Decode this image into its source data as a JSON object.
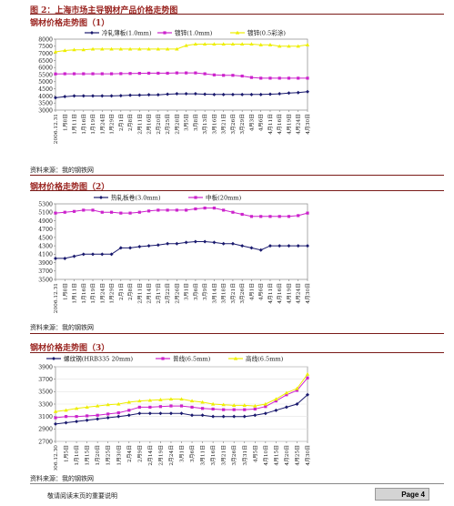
{
  "figure_title": "图 2：上海市场主导钢材产品价格走势图",
  "source_text": "资料来源：我的钢铁网",
  "disclaimer": "敬请阅读末页的重要说明",
  "page_label": "Page 4",
  "chart_data": [
    {
      "type": "line",
      "title": "钢材价格走势图（1）",
      "ylim": [
        3000,
        8000
      ],
      "yticks": [
        3000,
        3500,
        4000,
        4500,
        5000,
        5500,
        6000,
        6500,
        7000,
        7500,
        8000
      ],
      "x": [
        "2006.12.31",
        "1月8日",
        "1月11日",
        "1月16日",
        "1月19日",
        "1月24日",
        "1月29日",
        "2月1日",
        "2月8日",
        "2月11日",
        "2月16日",
        "2月20日",
        "2月25日",
        "2月28日",
        "3月5日",
        "3月8日",
        "3月13日",
        "3月16日",
        "3月21日",
        "3月26日",
        "3月29日",
        "4月3日",
        "4月6日",
        "4月11日",
        "4月16日",
        "4月19日",
        "4月24日",
        "4月30日"
      ],
      "series": [
        {
          "name": "冷轧薄板(1.0mm)",
          "color": "#1a1a6e",
          "marker": "diamond",
          "values": [
            3870,
            3950,
            4000,
            4000,
            4000,
            4000,
            4000,
            4020,
            4050,
            4060,
            4080,
            4080,
            4120,
            4150,
            4150,
            4150,
            4120,
            4100,
            4100,
            4100,
            4100,
            4100,
            4100,
            4120,
            4150,
            4200,
            4230,
            4300
          ]
        },
        {
          "name": "镀锌(1.0mm)",
          "color": "#cc22cc",
          "marker": "square",
          "values": [
            5550,
            5560,
            5560,
            5560,
            5560,
            5560,
            5560,
            5570,
            5580,
            5590,
            5600,
            5600,
            5600,
            5620,
            5620,
            5620,
            5560,
            5480,
            5450,
            5450,
            5400,
            5300,
            5250,
            5250,
            5250,
            5250,
            5250,
            5250
          ]
        },
        {
          "name": "镀锌(0.5彩涂)",
          "color": "#eeee00",
          "marker": "triangle",
          "values": [
            7100,
            7200,
            7250,
            7250,
            7300,
            7300,
            7300,
            7300,
            7300,
            7300,
            7300,
            7300,
            7300,
            7300,
            7550,
            7650,
            7650,
            7650,
            7650,
            7650,
            7650,
            7650,
            7600,
            7600,
            7500,
            7500,
            7500,
            7600
          ]
        }
      ]
    },
    {
      "type": "line",
      "title": "钢材价格走势图（2）",
      "ylim": [
        3500,
        5300
      ],
      "yticks": [
        3500,
        3700,
        3900,
        4100,
        4300,
        4500,
        4700,
        4900,
        5100,
        5300
      ],
      "x": [
        "2006.12.31",
        "1月8日",
        "1月11日",
        "1月16日",
        "1月19日",
        "1月24日",
        "1月29日",
        "2月1日",
        "2月8日",
        "2月11日",
        "2月14日",
        "2月17日",
        "2月22日",
        "2月26日",
        "3月1日",
        "3月6日",
        "3月9日",
        "3月14日",
        "3月18日",
        "3月21日",
        "3月26日",
        "4月1日",
        "4月6日",
        "4月11日",
        "4月16日",
        "4月19日",
        "4月24日",
        "4月30日"
      ],
      "series": [
        {
          "name": "热轧板卷(3.0mm)",
          "color": "#1a1a6e",
          "marker": "diamond",
          "values": [
            4000,
            4000,
            4050,
            4100,
            4100,
            4100,
            4100,
            4250,
            4250,
            4280,
            4300,
            4320,
            4350,
            4350,
            4380,
            4400,
            4400,
            4380,
            4350,
            4350,
            4300,
            4250,
            4200,
            4300,
            4300,
            4300,
            4300,
            4300
          ]
        },
        {
          "name": "中板(20mm)",
          "color": "#cc22cc",
          "marker": "square",
          "values": [
            5080,
            5100,
            5120,
            5150,
            5150,
            5100,
            5100,
            5080,
            5080,
            5100,
            5130,
            5150,
            5150,
            5150,
            5150,
            5180,
            5200,
            5200,
            5150,
            5100,
            5050,
            5000,
            5000,
            5000,
            5000,
            5000,
            5020,
            5080
          ]
        }
      ]
    },
    {
      "type": "line",
      "title": "钢材价格走势图（3）",
      "ylim": [
        2700,
        3900
      ],
      "yticks": [
        2700,
        2900,
        3100,
        3300,
        3500,
        3700,
        3900
      ],
      "x": [
        "2006.12.30",
        "1月5日",
        "1月10日",
        "1月15日",
        "1月20日",
        "1月25日",
        "1月30日",
        "2月4日",
        "2月9日",
        "2月14日",
        "2月19日",
        "2月24日",
        "3月1日",
        "3月6日",
        "3月11日",
        "3月16日",
        "3月21日",
        "3月26日",
        "3月31日",
        "4月5日",
        "4月10日",
        "4月15日",
        "4月20日",
        "4月25日",
        "4月30日"
      ],
      "series": [
        {
          "name": "螺纹钢(HRB335 20mm)",
          "color": "#1a1a6e",
          "marker": "diamond",
          "values": [
            2980,
            3000,
            3020,
            3040,
            3060,
            3080,
            3100,
            3120,
            3150,
            3150,
            3150,
            3150,
            3150,
            3120,
            3120,
            3100,
            3100,
            3100,
            3100,
            3120,
            3150,
            3200,
            3250,
            3300,
            3450
          ]
        },
        {
          "name": "普线(6.5mm)",
          "color": "#cc22cc",
          "marker": "square",
          "values": [
            3080,
            3100,
            3100,
            3110,
            3120,
            3140,
            3160,
            3200,
            3250,
            3250,
            3260,
            3270,
            3270,
            3250,
            3230,
            3220,
            3210,
            3210,
            3210,
            3220,
            3260,
            3350,
            3450,
            3520,
            3720
          ]
        },
        {
          "name": "高线(6.5mm)",
          "color": "#eeee00",
          "marker": "triangle",
          "values": [
            3180,
            3200,
            3230,
            3250,
            3270,
            3290,
            3300,
            3330,
            3350,
            3360,
            3370,
            3380,
            3380,
            3350,
            3330,
            3300,
            3290,
            3280,
            3280,
            3270,
            3300,
            3380,
            3480,
            3550,
            3780
          ]
        }
      ]
    }
  ]
}
